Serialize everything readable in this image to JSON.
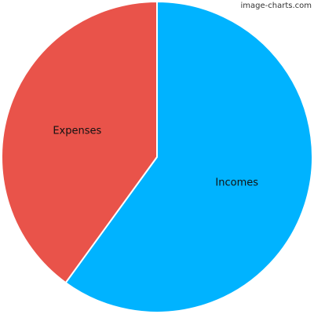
{
  "watermark": "image-charts.com",
  "chart_data": {
    "type": "pie",
    "categories": [
      "Incomes",
      "Expenses"
    ],
    "values": [
      60,
      40
    ],
    "colors": [
      "#00B3FF",
      "#E9534A"
    ],
    "start_angle_deg": 0,
    "direction": "clockwise",
    "legend": "none"
  }
}
